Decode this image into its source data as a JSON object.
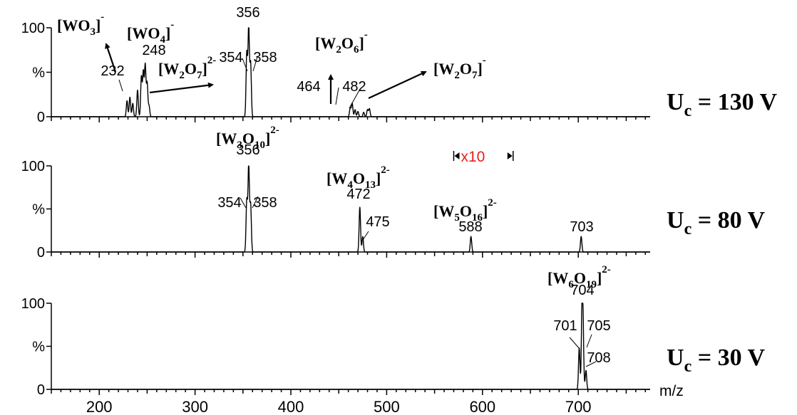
{
  "chart_data": {
    "type": "line",
    "xlabel": "m/z",
    "xlim": [
      150,
      775
    ],
    "xticks": [
      200,
      300,
      400,
      500,
      600,
      700
    ],
    "y_tick_labels": [
      "100",
      "%",
      "0"
    ],
    "panels": [
      {
        "voltage": {
          "base": "U",
          "sub": "c",
          "value": " = 130 V"
        },
        "peaks": [
          {
            "mz": 229,
            "intensity": 18
          },
          {
            "mz": 232,
            "intensity": 22
          },
          {
            "mz": 235,
            "intensity": 15
          },
          {
            "mz": 240,
            "intensity": 30
          },
          {
            "mz": 244,
            "intensity": 45
          },
          {
            "mz": 246,
            "intensity": 50
          },
          {
            "mz": 248,
            "intensity": 58
          },
          {
            "mz": 250,
            "intensity": 38
          },
          {
            "mz": 252,
            "intensity": 12
          },
          {
            "mz": 354,
            "intensity": 72
          },
          {
            "mz": 356,
            "intensity": 100
          },
          {
            "mz": 358,
            "intensity": 60
          },
          {
            "mz": 462,
            "intensity": 10
          },
          {
            "mz": 464,
            "intensity": 15
          },
          {
            "mz": 467,
            "intensity": 8
          },
          {
            "mz": 470,
            "intensity": 6
          },
          {
            "mz": 476,
            "intensity": 5
          },
          {
            "mz": 480,
            "intensity": 8
          },
          {
            "mz": 482,
            "intensity": 9
          }
        ],
        "peak_labels": [
          {
            "text": "232",
            "mz": 232
          },
          {
            "text": "248",
            "mz": 248
          },
          {
            "text": "354",
            "mz": 354
          },
          {
            "text": "356",
            "mz": 356
          },
          {
            "text": "358",
            "mz": 358
          },
          {
            "text": "464",
            "mz": 464
          },
          {
            "text": "482",
            "mz": 482
          }
        ],
        "ions": [
          {
            "parts": [
              {
                "t": "[WO"
              },
              {
                "t": "3",
                "sub": true
              },
              {
                "t": "]"
              },
              {
                "t": "-",
                "sup": true
              }
            ]
          },
          {
            "parts": [
              {
                "t": "[WO"
              },
              {
                "t": "4",
                "sub": true
              },
              {
                "t": "]"
              },
              {
                "t": "-",
                "sup": true
              }
            ]
          },
          {
            "parts": [
              {
                "t": "[W"
              },
              {
                "t": "2",
                "sub": true
              },
              {
                "t": "O"
              },
              {
                "t": "7",
                "sub": true
              },
              {
                "t": "]"
              },
              {
                "t": "2-",
                "sup": true
              }
            ]
          },
          {
            "parts": [
              {
                "t": "[W"
              },
              {
                "t": "2",
                "sub": true
              },
              {
                "t": "O"
              },
              {
                "t": "6",
                "sub": true
              },
              {
                "t": "]"
              },
              {
                "t": "-",
                "sup": true
              }
            ]
          },
          {
            "parts": [
              {
                "t": "[W"
              },
              {
                "t": "2",
                "sub": true
              },
              {
                "t": "O"
              },
              {
                "t": "7",
                "sub": true
              },
              {
                "t": "]"
              },
              {
                "t": "-",
                "sup": true
              }
            ]
          }
        ]
      },
      {
        "voltage": {
          "base": "U",
          "sub": "c",
          "value": " = 80 V"
        },
        "magnification": {
          "text": "x10",
          "color": "#e8201c",
          "mz_range": [
            570,
            632
          ]
        },
        "peaks": [
          {
            "mz": 354,
            "intensity": 60
          },
          {
            "mz": 356,
            "intensity": 100
          },
          {
            "mz": 358,
            "intensity": 55
          },
          {
            "mz": 472,
            "intensity": 52
          },
          {
            "mz": 475,
            "intensity": 18
          },
          {
            "mz": 588,
            "intensity": 18
          },
          {
            "mz": 703,
            "intensity": 18
          }
        ],
        "peak_labels": [
          {
            "text": "354",
            "mz": 354
          },
          {
            "text": "356",
            "mz": 356
          },
          {
            "text": "358",
            "mz": 358
          },
          {
            "text": "472",
            "mz": 472
          },
          {
            "text": "475",
            "mz": 475
          },
          {
            "text": "588",
            "mz": 588
          },
          {
            "text": "703",
            "mz": 703
          }
        ],
        "ions": [
          {
            "parts": [
              {
                "t": "[W"
              },
              {
                "t": "3",
                "sub": true
              },
              {
                "t": "O"
              },
              {
                "t": "10",
                "sub": true
              },
              {
                "t": "]"
              },
              {
                "t": "2-",
                "sup": true
              }
            ]
          },
          {
            "parts": [
              {
                "t": "[W"
              },
              {
                "t": "4",
                "sub": true
              },
              {
                "t": "O"
              },
              {
                "t": "13",
                "sub": true
              },
              {
                "t": "]"
              },
              {
                "t": "2-",
                "sup": true
              }
            ]
          },
          {
            "parts": [
              {
                "t": "[W"
              },
              {
                "t": "5",
                "sub": true
              },
              {
                "t": "O"
              },
              {
                "t": "16",
                "sub": true
              },
              {
                "t": "]"
              },
              {
                "t": "2-",
                "sup": true
              }
            ]
          }
        ]
      },
      {
        "voltage": {
          "base": "U",
          "sub": "c",
          "value": " = 30 V"
        },
        "peaks": [
          {
            "mz": 701,
            "intensity": 48
          },
          {
            "mz": 704,
            "intensity": 100
          },
          {
            "mz": 705,
            "intensity": 55
          },
          {
            "mz": 708,
            "intensity": 22
          }
        ],
        "peak_labels": [
          {
            "text": "701",
            "mz": 701
          },
          {
            "text": "704",
            "mz": 704
          },
          {
            "text": "705",
            "mz": 705
          },
          {
            "text": "708",
            "mz": 708
          }
        ],
        "ions": [
          {
            "parts": [
              {
                "t": "[W"
              },
              {
                "t": "6",
                "sub": true
              },
              {
                "t": "O"
              },
              {
                "t": "19",
                "sub": true
              },
              {
                "t": "]"
              },
              {
                "t": "2-",
                "sup": true
              }
            ]
          }
        ]
      }
    ]
  }
}
